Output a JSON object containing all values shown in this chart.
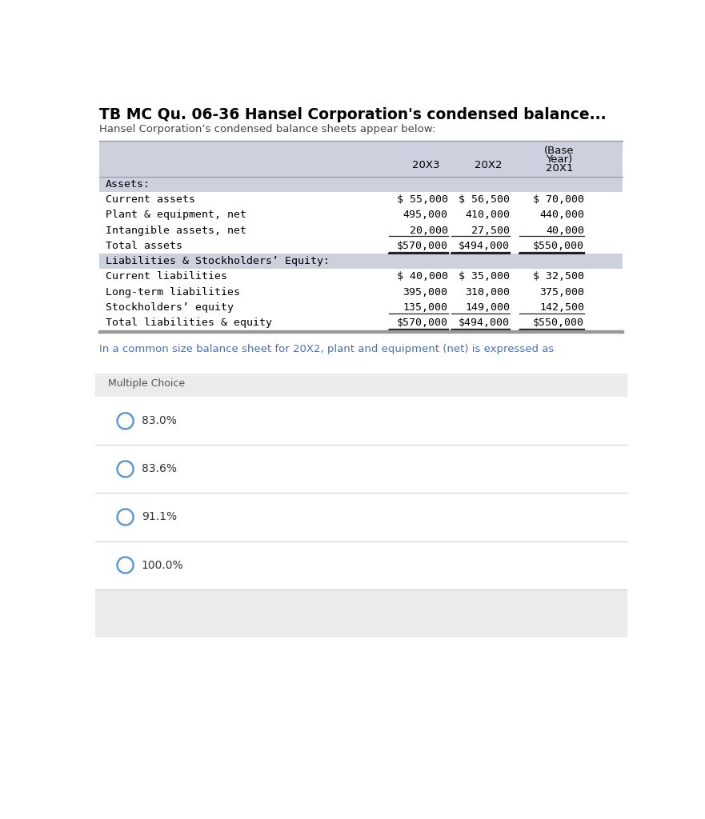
{
  "title": "TB MC Qu. 06-36 Hansel Corporation's condensed balance...",
  "subtitle": "Hansel Corporation’s condensed balance sheets appear below:",
  "question": "In a common size balance sheet for 20X2, plant and equipment (net) is expressed as",
  "bg_color": "#ffffff",
  "table_header_bg": "#cdd0dd",
  "header_cols": [
    "20X3",
    "20X2",
    "(Base\nYear)\n20X1"
  ],
  "table_rows": [
    {
      "label": "Assets:",
      "vals": [
        "",
        "",
        ""
      ],
      "bold": false,
      "section_header": true,
      "underline": false,
      "double_underline": false
    },
    {
      "label": "Current assets",
      "vals": [
        "$ 55,000",
        "$ 56,500",
        "$ 70,000"
      ],
      "bold": false,
      "section_header": false,
      "underline": false,
      "double_underline": false
    },
    {
      "label": "Plant & equipment, net",
      "vals": [
        "495,000",
        "410,000",
        "440,000"
      ],
      "bold": false,
      "section_header": false,
      "underline": false,
      "double_underline": false
    },
    {
      "label": "Intangible assets, net",
      "vals": [
        "20,000",
        "27,500",
        "40,000"
      ],
      "bold": false,
      "section_header": false,
      "underline": true,
      "double_underline": false
    },
    {
      "label": "Total assets",
      "vals": [
        "$570,000",
        "$494,000",
        "$550,000"
      ],
      "bold": false,
      "section_header": false,
      "underline": false,
      "double_underline": true
    },
    {
      "label": "Liabilities & Stockholders’ Equity:",
      "vals": [
        "",
        "",
        ""
      ],
      "bold": false,
      "section_header": true,
      "underline": false,
      "double_underline": false
    },
    {
      "label": "Current liabilities",
      "vals": [
        "$ 40,000",
        "$ 35,000",
        "$ 32,500"
      ],
      "bold": false,
      "section_header": false,
      "underline": false,
      "double_underline": false
    },
    {
      "label": "Long-term liabilities",
      "vals": [
        "395,000",
        "310,000",
        "375,000"
      ],
      "bold": false,
      "section_header": false,
      "underline": false,
      "double_underline": false
    },
    {
      "label": "Stockholders’ equity",
      "vals": [
        "135,000",
        "149,000",
        "142,500"
      ],
      "bold": false,
      "section_header": false,
      "underline": true,
      "double_underline": false
    },
    {
      "label": "Total liabilities & equity",
      "vals": [
        "$570,000",
        "$494,000",
        "$550,000"
      ],
      "bold": false,
      "section_header": false,
      "underline": false,
      "double_underline": true
    }
  ],
  "mc_label": "Multiple Choice",
  "choices": [
    "83.0%",
    "83.6%",
    "91.1%",
    "100.0%"
  ],
  "mc_bg": "#ebebeb",
  "choice_bg": "#ffffff",
  "circle_color": "#5b9bd5",
  "title_color": "#000000",
  "subtitle_color": "#444444",
  "question_color": "#4472c4",
  "table_text_color": "#000000",
  "mc_text_color": "#555555"
}
